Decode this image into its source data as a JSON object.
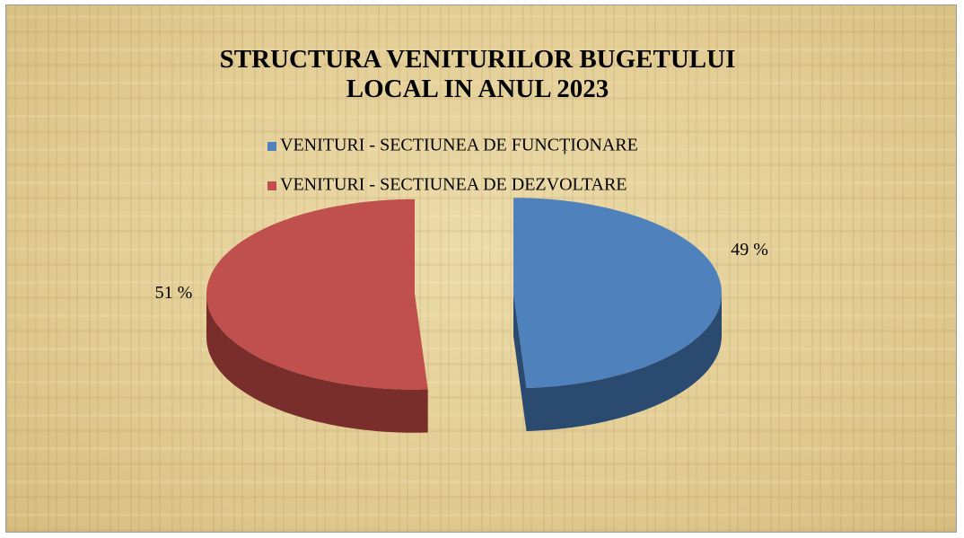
{
  "chart_data": {
    "type": "pie",
    "title": "STRUCTURA VENITURILOR BUGETULUI LOCAL IN ANUL 2023",
    "categories": [
      "VENITURI - SECTIUNEA DE FUNCȚIONARE",
      "VENITURI - SECTIUNEA DE DEZVOLTARE"
    ],
    "values": [
      49,
      51
    ],
    "value_labels": [
      "49 %",
      "51 %"
    ],
    "colors": [
      "#4f81bd",
      "#c0504d"
    ],
    "side_colors": [
      "#2b4a70",
      "#7a2e2c"
    ],
    "legend": "top"
  }
}
